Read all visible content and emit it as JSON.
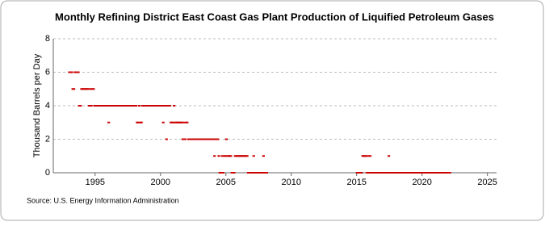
{
  "chart_data": {
    "type": "scatter",
    "title": "Monthly Refining District East Coast Gas Plant Production of Liquified Petroleum Gases",
    "y_label": "Thousand Barrels per Day",
    "source": "Source: U.S. Energy Information Administration",
    "color": "#cc0000",
    "xlim": [
      1991.8,
      2025.7
    ],
    "xticks": [
      1995,
      2000,
      2005,
      2010,
      2015,
      2020,
      2025
    ],
    "ylim": [
      0,
      8
    ],
    "yticks": [
      0,
      2,
      4,
      6,
      8
    ],
    "grid": true,
    "x": [
      1993.04,
      1993.13,
      1993.21,
      1993.29,
      1993.38,
      1993.46,
      1993.54,
      1993.63,
      1993.71,
      1993.79,
      1993.88,
      1993.96,
      1994.04,
      1994.13,
      1994.21,
      1994.29,
      1994.38,
      1994.46,
      1994.54,
      1994.63,
      1994.71,
      1994.79,
      1994.88,
      1994.96,
      1995.04,
      1995.13,
      1995.21,
      1995.29,
      1995.38,
      1995.46,
      1995.54,
      1995.63,
      1995.71,
      1995.79,
      1995.88,
      1995.96,
      1996.04,
      1996.13,
      1996.21,
      1996.29,
      1996.38,
      1996.46,
      1996.54,
      1996.63,
      1996.71,
      1996.79,
      1996.88,
      1996.96,
      1997.04,
      1997.13,
      1997.21,
      1997.29,
      1997.38,
      1997.46,
      1997.54,
      1997.63,
      1997.71,
      1997.79,
      1997.88,
      1997.96,
      1998.04,
      1998.13,
      1998.21,
      1998.29,
      1998.38,
      1998.46,
      1998.54,
      1998.63,
      1998.71,
      1998.79,
      1998.88,
      1998.96,
      1999.04,
      1999.13,
      1999.21,
      1999.29,
      1999.38,
      1999.46,
      1999.54,
      1999.63,
      1999.71,
      1999.79,
      1999.88,
      1999.96,
      2000.04,
      2000.13,
      2000.21,
      2000.29,
      2000.38,
      2000.46,
      2000.54,
      2000.63,
      2000.71,
      2000.79,
      2000.88,
      2000.96,
      2001.04,
      2001.13,
      2001.21,
      2001.29,
      2001.38,
      2001.46,
      2001.54,
      2001.63,
      2001.71,
      2001.79,
      2001.88,
      2001.96,
      2002.04,
      2002.13,
      2002.21,
      2002.29,
      2002.38,
      2002.46,
      2002.54,
      2002.63,
      2002.71,
      2002.79,
      2002.88,
      2002.96,
      2003.04,
      2003.13,
      2003.21,
      2003.29,
      2003.38,
      2003.46,
      2003.54,
      2003.63,
      2003.71,
      2003.79,
      2003.88,
      2003.96,
      2004.04,
      2004.13,
      2004.21,
      2004.29,
      2004.38,
      2004.46,
      2004.54,
      2004.63,
      2004.71,
      2004.79,
      2004.88,
      2004.96,
      2005.04,
      2005.13,
      2005.21,
      2005.29,
      2005.38,
      2005.46,
      2005.54,
      2005.63,
      2005.71,
      2005.79,
      2005.88,
      2005.96,
      2006.04,
      2006.13,
      2006.21,
      2006.29,
      2006.38,
      2006.46,
      2006.54,
      2006.63,
      2006.71,
      2006.79,
      2006.88,
      2006.96,
      2007.04,
      2007.13,
      2007.21,
      2007.29,
      2007.38,
      2007.46,
      2007.54,
      2007.63,
      2007.71,
      2007.79,
      2007.88,
      2007.96,
      2008.04,
      2008.13,
      2015.04,
      2015.13,
      2015.21,
      2015.29,
      2015.38,
      2015.46,
      2015.54,
      2015.63,
      2015.71,
      2015.79,
      2015.88,
      2015.96,
      2016.04,
      2016.13,
      2016.21,
      2016.29,
      2016.38,
      2016.46,
      2016.54,
      2016.63,
      2016.71,
      2016.79,
      2016.88,
      2016.96,
      2017.04,
      2017.13,
      2017.21,
      2017.29,
      2017.38,
      2017.46,
      2017.54,
      2017.63,
      2017.71,
      2017.79,
      2017.88,
      2017.96,
      2018.04,
      2018.13,
      2018.21,
      2018.29,
      2018.38,
      2018.46,
      2018.54,
      2018.63,
      2018.71,
      2018.79,
      2018.88,
      2018.96,
      2019.04,
      2019.13,
      2019.21,
      2019.29,
      2019.38,
      2019.46,
      2019.54,
      2019.63,
      2019.71,
      2019.79,
      2019.88,
      2019.96,
      2020.04,
      2020.13,
      2020.21,
      2020.29,
      2020.38,
      2020.46,
      2020.54,
      2020.63,
      2020.71,
      2020.79,
      2020.88,
      2020.96,
      2021.04,
      2021.13,
      2021.21,
      2021.29,
      2021.38,
      2021.46,
      2021.54,
      2021.63,
      2021.71,
      2021.79,
      2021.88,
      2021.96,
      2022.04,
      2022.13
    ],
    "values": [
      6,
      6,
      6,
      5,
      5,
      6,
      6,
      6,
      6,
      4,
      4,
      5,
      5,
      5,
      5,
      5,
      5,
      5,
      4,
      5,
      4,
      5,
      5,
      4,
      4,
      4,
      4,
      4,
      4,
      4,
      4,
      4,
      4,
      4,
      4,
      4,
      3,
      4,
      4,
      4,
      4,
      4,
      4,
      4,
      4,
      4,
      4,
      4,
      4,
      4,
      4,
      4,
      4,
      4,
      4,
      4,
      4,
      4,
      4,
      4,
      4,
      4,
      3,
      3,
      4,
      3,
      3,
      4,
      4,
      4,
      4,
      4,
      4,
      4,
      4,
      4,
      4,
      4,
      4,
      4,
      4,
      4,
      4,
      4,
      4,
      4,
      3,
      4,
      4,
      2,
      4,
      4,
      4,
      3,
      3,
      3,
      4,
      3,
      3,
      3,
      3,
      3,
      3,
      3,
      2,
      3,
      2,
      3,
      3,
      2,
      2,
      2,
      2,
      2,
      2,
      2,
      2,
      2,
      2,
      2,
      2,
      2,
      2,
      2,
      2,
      2,
      2,
      2,
      2,
      2,
      2,
      2,
      2,
      1,
      2,
      2,
      2,
      1,
      0,
      0,
      1,
      0,
      1,
      1,
      2,
      1,
      1,
      1,
      1,
      0,
      0,
      0,
      1,
      1,
      1,
      1,
      1,
      1,
      1,
      1,
      1,
      1,
      1,
      1,
      0,
      0,
      0,
      0,
      0,
      1,
      0,
      0,
      0,
      0,
      0,
      0,
      0,
      0,
      1,
      0,
      0,
      0,
      0,
      0,
      0,
      0,
      0,
      1,
      1,
      1,
      1,
      0,
      1,
      0,
      1,
      0,
      0,
      0,
      0,
      0,
      0,
      0,
      0,
      0,
      0,
      0,
      0,
      0,
      0,
      0,
      0,
      1,
      0,
      0,
      0,
      0,
      0,
      0,
      0,
      0,
      0,
      0,
      0,
      0,
      0,
      0,
      0,
      0,
      0,
      0,
      0,
      0,
      0,
      0,
      0,
      0,
      0,
      0,
      0,
      0,
      0,
      0,
      0,
      0,
      0,
      0,
      0,
      0,
      0,
      0,
      0,
      0,
      0,
      0,
      0,
      0,
      0,
      0,
      0,
      0,
      0,
      0,
      0,
      0,
      0,
      0,
      0,
      0
    ]
  }
}
